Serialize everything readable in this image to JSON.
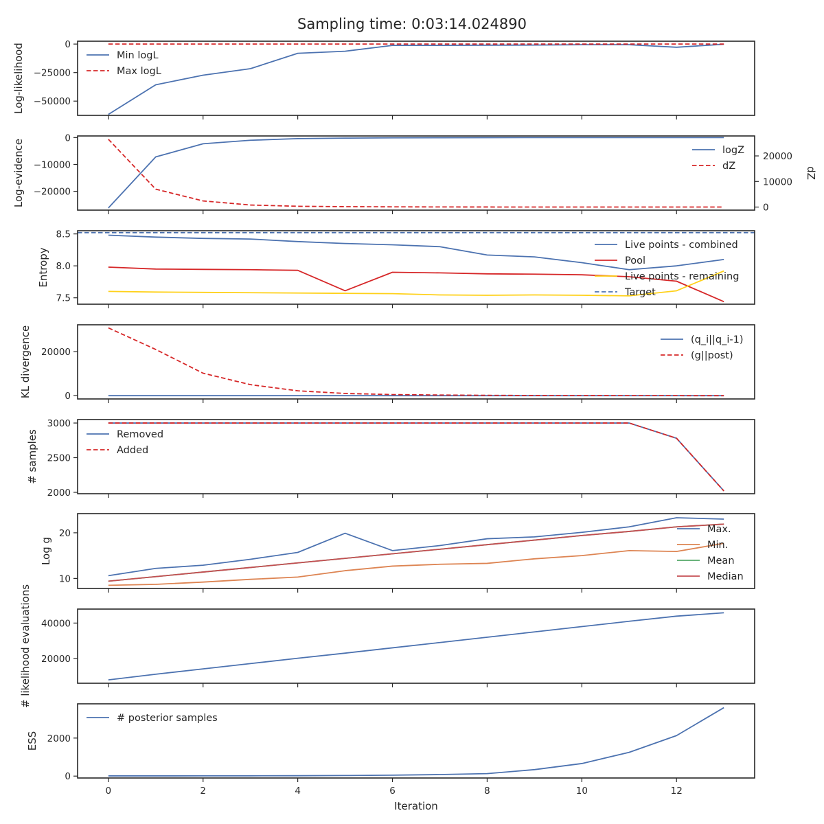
{
  "chart_data": [
    {
      "title": "Sampling time: 0:03:14.024890",
      "type": "line",
      "ylabel": "Log-likelihood",
      "xlim": [
        -0.65,
        13.65
      ],
      "ylim": [
        -62500,
        2500
      ],
      "yticks": [
        0,
        -25000,
        -50000
      ],
      "ytick_labels": [
        "0",
        "−25000",
        "−50000"
      ],
      "legend": "upper-left",
      "series": [
        {
          "name": "Min logL",
          "color": "#4c72b0",
          "dash": "solid",
          "x": [
            0,
            1,
            2,
            3,
            4,
            5,
            6,
            7,
            8,
            9,
            10,
            11,
            12,
            13
          ],
          "y": [
            -61700,
            -35700,
            -27300,
            -21600,
            -8100,
            -6300,
            -1200,
            -1200,
            -1000,
            -900,
            -600,
            -600,
            -2800,
            -200
          ]
        },
        {
          "name": "Max logL",
          "color": "#d62728",
          "dash": "dashed",
          "x": [
            0,
            1,
            2,
            3,
            4,
            5,
            6,
            7,
            8,
            9,
            10,
            11,
            12,
            13
          ],
          "y": [
            0,
            0,
            0,
            0,
            0,
            0,
            0,
            0,
            0,
            0,
            0,
            0,
            0,
            0
          ]
        }
      ]
    },
    {
      "type": "line",
      "ylabel": "Log-evidence",
      "xlim": [
        -0.65,
        13.65
      ],
      "ylim": [
        -27000,
        600
      ],
      "yticks": [
        0,
        -10000,
        -20000
      ],
      "ytick_labels": [
        "0",
        "−10000",
        "−20000"
      ],
      "secondary_ylabel": "dZ",
      "secondary_ylim": [
        -1200,
        27800
      ],
      "secondary_yticks": [
        0,
        10000,
        20000
      ],
      "secondary_ytick_labels": [
        "0",
        "10000",
        "20000"
      ],
      "legend": "upper-right",
      "series": [
        {
          "name": "logZ",
          "color": "#4c72b0",
          "dash": "solid",
          "axis": "left",
          "x": [
            0,
            1,
            2,
            3,
            4,
            5,
            6,
            7,
            8,
            9,
            10,
            11,
            12,
            13
          ],
          "y": [
            -26200,
            -7200,
            -2300,
            -1000,
            -400,
            -200,
            -100,
            -50,
            -20,
            -10,
            -5,
            -2,
            -1,
            0
          ]
        },
        {
          "name": "dZ",
          "color": "#d62728",
          "dash": "dashed",
          "axis": "right",
          "x": [
            0,
            1,
            2,
            3,
            4,
            5,
            6,
            7,
            8,
            9,
            10,
            11,
            12,
            13
          ],
          "y": [
            26500,
            7000,
            2400,
            800,
            300,
            150,
            80,
            40,
            20,
            10,
            5,
            3,
            2,
            1
          ]
        }
      ]
    },
    {
      "type": "line",
      "ylabel": "Entropy",
      "xlim": [
        -0.65,
        13.65
      ],
      "ylim": [
        7.4,
        8.55
      ],
      "yticks": [
        8.5,
        8.0,
        7.5
      ],
      "ytick_labels": [
        "8.5",
        "8.0",
        "7.5"
      ],
      "legend": "right",
      "series": [
        {
          "name": "Live points - combined",
          "color": "#4c72b0",
          "dash": "solid",
          "x": [
            0,
            1,
            2,
            3,
            4,
            5,
            6,
            7,
            8,
            9,
            10,
            11,
            12,
            13
          ],
          "y": [
            8.48,
            8.45,
            8.43,
            8.42,
            8.38,
            8.35,
            8.33,
            8.3,
            8.17,
            8.14,
            8.05,
            7.94,
            8.0,
            8.1
          ]
        },
        {
          "name": "Pool",
          "color": "#d62728",
          "dash": "solid",
          "x": [
            0,
            1,
            2,
            3,
            4,
            5,
            6,
            7,
            8,
            9,
            10,
            11,
            12,
            13
          ],
          "y": [
            7.98,
            7.95,
            7.945,
            7.94,
            7.93,
            7.61,
            7.9,
            7.89,
            7.875,
            7.87,
            7.86,
            7.83,
            7.76,
            7.44
          ]
        },
        {
          "name": "Live points - remaining",
          "color": "#ffd11a",
          "dash": "solid",
          "x": [
            0,
            1,
            2,
            3,
            4,
            5,
            6,
            7,
            8,
            9,
            10,
            11,
            12,
            13
          ],
          "y": [
            7.6,
            7.59,
            7.585,
            7.58,
            7.575,
            7.57,
            7.565,
            7.545,
            7.54,
            7.545,
            7.54,
            7.53,
            7.61,
            7.92
          ]
        },
        {
          "name": "Target",
          "color": "#4c72b0",
          "dash": "dashed",
          "x": [
            -0.65,
            13.65
          ],
          "y": [
            8.52,
            8.52
          ]
        }
      ]
    },
    {
      "type": "line",
      "ylabel": "KL divergence",
      "xlim": [
        -0.65,
        13.65
      ],
      "ylim": [
        -1500,
        32200
      ],
      "yticks": [
        0,
        20000
      ],
      "ytick_labels": [
        "0",
        "20000"
      ],
      "legend": "upper-right",
      "series": [
        {
          "name": "(q_i||q_i-1)",
          "color": "#4c72b0",
          "dash": "solid",
          "x": [
            0,
            1,
            2,
            3,
            4,
            5,
            6,
            7,
            8,
            9,
            10,
            11,
            12,
            13
          ],
          "y": [
            0,
            5,
            5,
            5,
            5,
            5,
            5,
            5,
            5,
            5,
            5,
            5,
            5,
            5
          ]
        },
        {
          "name": "(g||post)",
          "color": "#d62728",
          "dash": "dashed",
          "x": [
            0,
            1,
            2,
            3,
            4,
            5,
            6,
            7,
            8,
            9,
            10,
            11,
            12,
            13
          ],
          "y": [
            30800,
            21000,
            10200,
            5000,
            2200,
            1000,
            500,
            300,
            150,
            80,
            50,
            20,
            10,
            5
          ]
        }
      ]
    },
    {
      "type": "line",
      "ylabel": "# samples",
      "xlim": [
        -0.65,
        13.65
      ],
      "ylim": [
        1980,
        3050
      ],
      "yticks": [
        3000,
        2500,
        2000
      ],
      "ytick_labels": [
        "3000",
        "2500",
        "2000"
      ],
      "legend": "upper-left",
      "series": [
        {
          "name": "Removed",
          "color": "#4c72b0",
          "dash": "solid",
          "x": [
            0,
            1,
            2,
            3,
            4,
            5,
            6,
            7,
            8,
            9,
            10,
            11,
            12,
            13
          ],
          "y": [
            3000,
            3000,
            3000,
            3000,
            3000,
            3000,
            3000,
            3000,
            3000,
            3000,
            3000,
            3000,
            2780,
            2020
          ]
        },
        {
          "name": "Added",
          "color": "#d62728",
          "dash": "dashed",
          "x": [
            0,
            1,
            2,
            3,
            4,
            5,
            6,
            7,
            8,
            9,
            10,
            11,
            12,
            13
          ],
          "y": [
            3000,
            3000,
            3000,
            3000,
            3000,
            3000,
            3000,
            3000,
            3000,
            3000,
            3000,
            3000,
            2780,
            2020
          ]
        }
      ]
    },
    {
      "type": "line",
      "ylabel": "Log g",
      "xlim": [
        -0.65,
        13.65
      ],
      "ylim": [
        7.8,
        24.2
      ],
      "yticks": [
        20,
        10
      ],
      "ytick_labels": [
        "20",
        "10"
      ],
      "legend": "lower-right",
      "series": [
        {
          "name": "Max.",
          "color": "#4c72b0",
          "dash": "solid",
          "x": [
            0,
            1,
            2,
            3,
            4,
            5,
            6,
            7,
            8,
            9,
            10,
            11,
            12,
            13
          ],
          "y": [
            10.6,
            12.2,
            12.9,
            14.2,
            15.7,
            19.9,
            16.1,
            17.2,
            18.7,
            19.1,
            20.1,
            21.3,
            23.3,
            23.0
          ]
        },
        {
          "name": "Min.",
          "color": "#dd8452",
          "dash": "solid",
          "x": [
            0,
            1,
            2,
            3,
            4,
            5,
            6,
            7,
            8,
            9,
            10,
            11,
            12,
            13
          ],
          "y": [
            8.5,
            8.7,
            9.2,
            9.8,
            10.3,
            11.7,
            12.7,
            13.1,
            13.3,
            14.3,
            15.0,
            16.1,
            15.9,
            17.7
          ]
        },
        {
          "name": "Mean",
          "color": "#55a868",
          "dash": "solid",
          "x": [
            0,
            1,
            2,
            3,
            4,
            5,
            6,
            7,
            8,
            9,
            10,
            11,
            12,
            13
          ],
          "y": [
            9.4,
            10.4,
            11.4,
            12.4,
            13.4,
            14.4,
            15.4,
            16.4,
            17.4,
            18.4,
            19.4,
            20.3,
            21.3,
            21.9
          ]
        },
        {
          "name": "Median",
          "color": "#c44e52",
          "dash": "solid",
          "x": [
            0,
            1,
            2,
            3,
            4,
            5,
            6,
            7,
            8,
            9,
            10,
            11,
            12,
            13
          ],
          "y": [
            9.4,
            10.4,
            11.4,
            12.4,
            13.4,
            14.4,
            15.4,
            16.4,
            17.4,
            18.4,
            19.4,
            20.3,
            21.3,
            21.9
          ]
        }
      ]
    },
    {
      "type": "line",
      "ylabel": "# likelihood evaluations",
      "xlim": [
        -0.65,
        13.65
      ],
      "ylim": [
        6000,
        47900
      ],
      "yticks": [
        40000,
        20000
      ],
      "ytick_labels": [
        "40000",
        "20000"
      ],
      "legend": "none",
      "series": [
        {
          "color": "#4c72b0",
          "dash": "solid",
          "x": [
            0,
            1,
            2,
            3,
            4,
            5,
            6,
            7,
            8,
            9,
            10,
            11,
            12,
            13
          ],
          "y": [
            7900,
            11100,
            14100,
            17100,
            20100,
            23000,
            26000,
            29000,
            32000,
            35000,
            38000,
            41000,
            43900,
            45800
          ]
        }
      ]
    },
    {
      "type": "line",
      "ylabel": "ESS",
      "xlabel": "Iteration",
      "xlim": [
        -0.65,
        13.65
      ],
      "ylim": [
        -100,
        3800
      ],
      "yticks": [
        0,
        2000
      ],
      "ytick_labels": [
        "0",
        "2000"
      ],
      "xticks": [
        0,
        2,
        4,
        6,
        8,
        10,
        12
      ],
      "xtick_labels": [
        "0",
        "2",
        "4",
        "6",
        "8",
        "10",
        "12"
      ],
      "legend": "upper-left",
      "series": [
        {
          "name": "# posterior samples",
          "color": "#4c72b0",
          "dash": "solid",
          "x": [
            0,
            1,
            2,
            3,
            4,
            5,
            6,
            7,
            8,
            9,
            10,
            11,
            12,
            13
          ],
          "y": [
            10,
            10,
            12,
            15,
            20,
            30,
            50,
            80,
            130,
            340,
            660,
            1250,
            2130,
            3600
          ]
        }
      ]
    }
  ]
}
